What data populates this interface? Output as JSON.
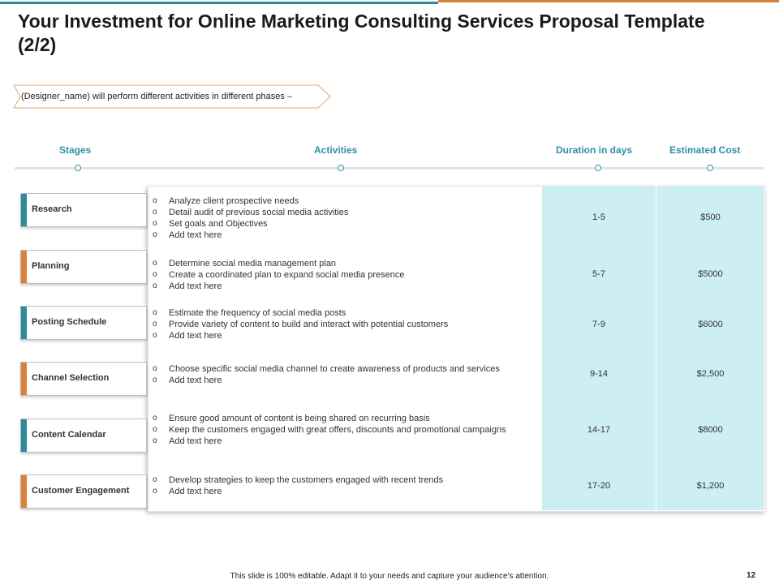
{
  "slide": {
    "title": "Your Investment for Online Marketing Consulting Services Proposal Template (2/2)",
    "callout": "(Designer_name) will perform different activities in different phases –",
    "footer": "This slide is 100% editable. Adapt it to your needs and capture your audience's attention.",
    "page_number": "12"
  },
  "colors": {
    "teal": "#2e8b9a",
    "orange": "#d9823b",
    "header_blue": "#2e8fa8",
    "cell_fill": "#cdeef3"
  },
  "table": {
    "headers": {
      "stages": "Stages",
      "activities": "Activities",
      "duration": "Duration in days",
      "cost": "Estimated Cost"
    },
    "bullet_glyph": "o",
    "rows": [
      {
        "stage": "Research",
        "accent": "teal",
        "activities": [
          "Analyze  client prospective needs",
          "Detail audit of previous social media activities",
          "Set goals and Objectives",
          "Add text here"
        ],
        "duration": "1-5",
        "cost": "$500"
      },
      {
        "stage": "Planning",
        "accent": "orange",
        "activities": [
          "Determine social media management plan",
          "Create a coordinated plan to expand social media presence",
          "Add text here"
        ],
        "duration": "5-7",
        "cost": "$5000"
      },
      {
        "stage": "Posting Schedule",
        "accent": "teal",
        "activities": [
          "Estimate the frequency of social media posts",
          "Provide variety  of content to build and interact with potential customers",
          "Add text here"
        ],
        "duration": "7-9",
        "cost": "$6000"
      },
      {
        "stage": "Channel  Selection",
        "accent": "orange",
        "activities": [
          "Choose specific social media channel to create awareness of products and services",
          "Add text here"
        ],
        "duration": "9-14",
        "cost": "$2,500"
      },
      {
        "stage": "Content Calendar",
        "accent": "teal",
        "activities": [
          "Ensure good amount of content is being shared on recurring basis",
          "Keep the customers engaged with great offers, discounts and promotional campaigns",
          "Add text here"
        ],
        "duration": "14-17",
        "cost": "$8000"
      },
      {
        "stage": "Customer Engagement",
        "accent": "orange",
        "activities": [
          "Develop strategies to keep the customers engaged with recent trends",
          "Add text here"
        ],
        "duration": "17-20",
        "cost": "$1,200"
      }
    ]
  }
}
